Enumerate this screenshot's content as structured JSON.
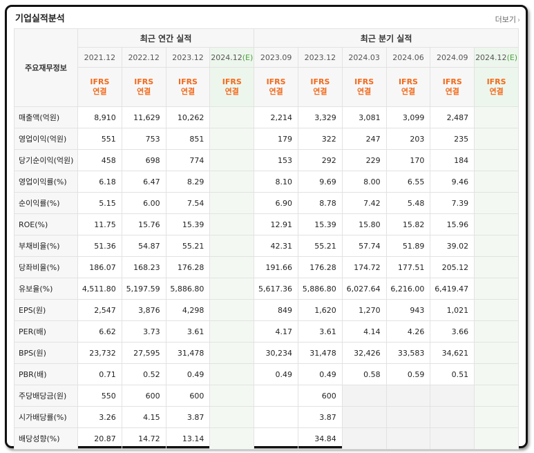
{
  "title": "기업실적분석",
  "more_label": "더보기",
  "more_icon": "chevron-right-icon",
  "header": {
    "row_label": "주요재무정보",
    "annual_label": "최근 연간 실적",
    "quarter_label": "최근 분기 실적",
    "annual_periods": [
      "2021.12",
      "2022.12",
      "2023.12",
      "2024.12"
    ],
    "quarter_periods": [
      "2023.09",
      "2023.12",
      "2024.03",
      "2024.06",
      "2024.09",
      "2024.12"
    ],
    "estimate_mark": "(E)",
    "ifrs_line1": "IFRS",
    "ifrs_line2": "연결"
  },
  "rows": [
    {
      "label": "매출액(억원)",
      "values": [
        "8,910",
        "11,629",
        "10,262",
        "",
        "2,214",
        "3,329",
        "3,081",
        "3,099",
        "2,487",
        ""
      ]
    },
    {
      "label": "영업이익(억원)",
      "values": [
        "551",
        "753",
        "851",
        "",
        "179",
        "322",
        "247",
        "203",
        "235",
        ""
      ]
    },
    {
      "label": "당기순이익(억원)",
      "values": [
        "458",
        "698",
        "774",
        "",
        "153",
        "292",
        "229",
        "170",
        "184",
        ""
      ]
    },
    {
      "label": "영업이익률(%)",
      "values": [
        "6.18",
        "6.47",
        "8.29",
        "",
        "8.10",
        "9.69",
        "8.00",
        "6.55",
        "9.46",
        ""
      ]
    },
    {
      "label": "순이익률(%)",
      "values": [
        "5.15",
        "6.00",
        "7.54",
        "",
        "6.90",
        "8.78",
        "7.42",
        "5.48",
        "7.39",
        ""
      ]
    },
    {
      "label": "ROE(%)",
      "values": [
        "11.75",
        "15.76",
        "15.39",
        "",
        "12.91",
        "15.39",
        "15.80",
        "15.82",
        "15.96",
        ""
      ]
    },
    {
      "label": "부채비율(%)",
      "values": [
        "51.36",
        "54.87",
        "55.21",
        "",
        "42.31",
        "55.21",
        "57.74",
        "51.89",
        "39.02",
        ""
      ]
    },
    {
      "label": "당좌비율(%)",
      "values": [
        "186.07",
        "168.23",
        "176.28",
        "",
        "191.66",
        "176.28",
        "174.72",
        "177.51",
        "205.12",
        ""
      ]
    },
    {
      "label": "유보율(%)",
      "values": [
        "4,511.80",
        "5,197.59",
        "5,886.80",
        "",
        "5,617.36",
        "5,886.80",
        "6,027.64",
        "6,216.00",
        "6,419.47",
        ""
      ]
    },
    {
      "label": "EPS(원)",
      "values": [
        "2,547",
        "3,876",
        "4,298",
        "",
        "849",
        "1,620",
        "1,270",
        "943",
        "1,021",
        ""
      ]
    },
    {
      "label": "PER(배)",
      "values": [
        "6.62",
        "3.73",
        "3.61",
        "",
        "4.17",
        "3.61",
        "4.14",
        "4.26",
        "3.66",
        ""
      ]
    },
    {
      "label": "BPS(원)",
      "values": [
        "23,732",
        "27,595",
        "31,478",
        "",
        "30,234",
        "31,478",
        "32,426",
        "33,583",
        "34,621",
        ""
      ]
    },
    {
      "label": "PBR(배)",
      "values": [
        "0.71",
        "0.52",
        "0.49",
        "",
        "0.49",
        "0.49",
        "0.58",
        "0.59",
        "0.51",
        ""
      ]
    },
    {
      "label": "주당배당금(원)",
      "values": [
        "550",
        "600",
        "600",
        "",
        "",
        "600",
        "",
        "",
        "",
        ""
      ]
    },
    {
      "label": "시가배당률(%)",
      "values": [
        "3.26",
        "4.15",
        "3.87",
        "",
        "",
        "3.87",
        "",
        "",
        "",
        ""
      ]
    },
    {
      "label": "배당성향(%)",
      "values": [
        "20.87",
        "14.72",
        "13.14",
        "",
        "",
        "34.84",
        "",
        "",
        "",
        ""
      ]
    }
  ],
  "group_breaks_after": [
    2,
    5,
    8,
    12
  ]
}
